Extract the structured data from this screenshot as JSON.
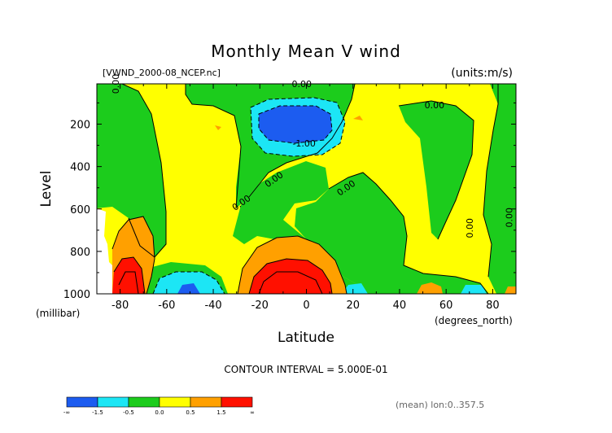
{
  "chart_data": {
    "type": "contour",
    "title": "Monthly Mean V wind",
    "dataset": "[VWND_2000-08_NCEP.nc]",
    "units": "(units:m/s)",
    "xlabel": "Latitude",
    "x_units": "(degrees_north)",
    "ylabel": "Level",
    "y_units": "(millibar)",
    "xlim": [
      -90,
      90
    ],
    "ylim": [
      1000,
      10
    ],
    "x_ticks": [
      -80,
      -60,
      -40,
      -20,
      0,
      20,
      40,
      60,
      80
    ],
    "y_ticks": [
      200,
      400,
      600,
      800,
      1000
    ],
    "contour_interval": "CONTOUR INTERVAL = 5.000E-01",
    "average_note": "(mean) lon:0..357.5",
    "contour_labels": [
      {
        "text": "0.00",
        "lat": -82,
        "lev": 10
      },
      {
        "text": "0.00",
        "lat": -2,
        "lev": 10
      },
      {
        "text": "-1.00",
        "lat": -1,
        "lev": 290
      },
      {
        "text": "0.00",
        "lat": 55,
        "lev": 110
      },
      {
        "text": "0.00",
        "lat": -14,
        "lev": 460
      },
      {
        "text": "0.00",
        "lat": -28,
        "lev": 570
      },
      {
        "text": "0.00",
        "lat": 17,
        "lev": 500
      },
      {
        "text": "0.00",
        "lat": 70,
        "lev": 690
      },
      {
        "text": "0.00",
        "lat": 87,
        "lev": 640
      }
    ],
    "colorbar": {
      "colors": [
        "#1c5cf0",
        "#1ce6f5",
        "#1ccc1c",
        "#ffff00",
        "#ffa000",
        "#ff1000"
      ],
      "labels": [
        "-∞",
        "-1.5",
        "-0.5",
        "0.0",
        "0.5",
        "1.5",
        "∞"
      ]
    }
  }
}
